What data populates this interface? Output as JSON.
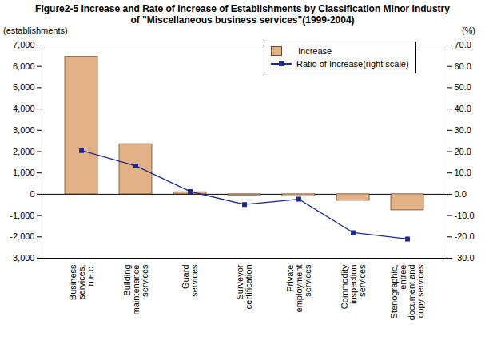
{
  "chart_data": {
    "type": "bar",
    "title": "Figure2-5   Increase and Rate of Increase of Establishments by Classification Minor Industry of \"Miscellaneous business services\"(1999-2004)",
    "categories": [
      "Business services, n.e.c.",
      "Building maintenance services",
      "Guard services",
      "Surveyor certification",
      "Private employment services",
      "Commodity inspection services",
      "Stenographic, entree document and copy services"
    ],
    "series": [
      {
        "name": "Increase",
        "type": "bar",
        "color": "#e2b186",
        "values": [
          6450,
          2350,
          100,
          -50,
          -100,
          -300,
          -750
        ]
      },
      {
        "name": "Ratio of Increase(right scale)",
        "type": "line",
        "axis": "y2",
        "color": "#1f2a8a",
        "marker": "square",
        "values": [
          20.5,
          13.3,
          1.3,
          -4.8,
          -2.3,
          -18.0,
          -21.0
        ]
      }
    ],
    "ylabel": "(establishments)",
    "y2label": "(%)",
    "ylim": [
      -3000,
      7000
    ],
    "yticks": [
      {
        "value": -3000,
        "label": "-3,000"
      },
      {
        "value": -2000,
        "label": "-2,000"
      },
      {
        "value": -1000,
        "label": "-1,000"
      },
      0,
      {
        "value": 1000,
        "label": "1,000"
      },
      {
        "value": 2000,
        "label": "2,000"
      },
      {
        "value": 3000,
        "label": "3,000"
      },
      {
        "value": 4000,
        "label": "4,000"
      },
      {
        "value": 5000,
        "label": "5,000"
      },
      {
        "value": 6000,
        "label": "6,000"
      },
      {
        "value": 7000,
        "label": "7,000"
      }
    ],
    "y2lim": [
      -30,
      70
    ],
    "y2ticks": [
      {
        "value": -30,
        "label": "-30.0"
      },
      {
        "value": -20,
        "label": "-20.0"
      },
      {
        "value": -10,
        "label": "-10.0"
      },
      {
        "value": 0,
        "label": "0.0"
      },
      {
        "value": 10,
        "label": "10.0"
      },
      {
        "value": 20,
        "label": "20.0"
      },
      {
        "value": 30,
        "label": "30.0"
      },
      {
        "value": 40,
        "label": "40.0"
      },
      {
        "value": 50,
        "label": "50.0"
      },
      {
        "value": 60,
        "label": "60.0"
      },
      {
        "value": 70,
        "label": "70.0"
      }
    ],
    "legend": "top-right"
  }
}
